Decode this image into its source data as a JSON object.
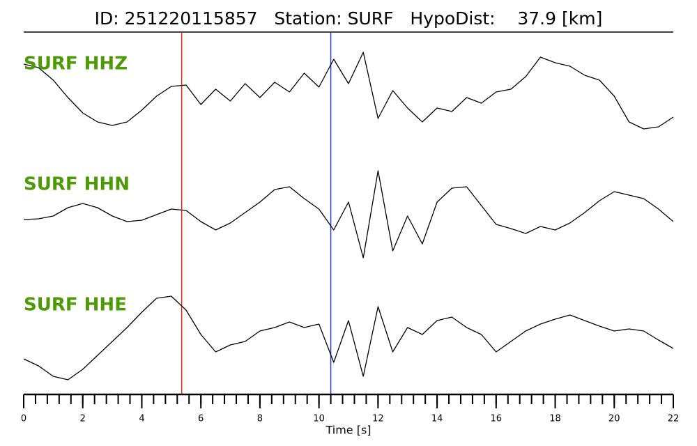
{
  "chart_data": {
    "type": "line",
    "title": "ID: 251220115857   Station: SURF   HypoDist:    37.9 [km]",
    "xlabel": "Time [s]",
    "xlim": [
      0,
      22
    ],
    "xticks": [
      0,
      2,
      4,
      6,
      8,
      10,
      12,
      14,
      16,
      18,
      20,
      22
    ],
    "xminor_interval": 0.4,
    "ylim": [
      -1,
      1
    ],
    "label_color": "#4e9a06",
    "x": [
      0,
      0.5,
      1,
      1.5,
      2,
      2.5,
      3,
      3.5,
      4,
      4.5,
      5,
      5.5,
      6,
      6.5,
      7,
      7.5,
      8,
      8.5,
      9,
      9.5,
      10,
      10.5,
      11,
      11.5,
      12,
      12.5,
      13,
      13.5,
      14,
      14.5,
      15,
      15.5,
      16,
      16.5,
      17,
      17.5,
      18,
      18.5,
      19,
      19.5,
      20,
      20.5,
      21,
      21.5,
      22
    ],
    "picks": [
      {
        "time": 5.35,
        "color": "#e8261c"
      },
      {
        "time": 10.4,
        "color": "#1f3fe0"
      }
    ],
    "series": [
      {
        "name": "SURF HHZ",
        "color": "#000000",
        "values": [
          0.38,
          0.33,
          0.15,
          -0.1,
          -0.32,
          -0.45,
          -0.5,
          -0.45,
          -0.28,
          -0.08,
          0.06,
          0.08,
          -0.2,
          0.02,
          -0.15,
          0.1,
          -0.1,
          0.12,
          -0.02,
          0.25,
          0.05,
          0.45,
          0.1,
          0.55,
          -0.4,
          0,
          -0.25,
          -0.45,
          -0.25,
          -0.3,
          -0.1,
          -0.18,
          -0.02,
          0.02,
          0.2,
          0.48,
          0.4,
          0.35,
          0.22,
          0.15,
          -0.08,
          -0.45,
          -0.55,
          -0.52,
          -0.38
        ]
      },
      {
        "name": "SURF HHN",
        "color": "#000000",
        "values": [
          0,
          0.01,
          0.05,
          0.17,
          0.23,
          0.17,
          0.05,
          -0.03,
          -0.01,
          0.07,
          0.15,
          0.13,
          -0.03,
          -0.15,
          -0.05,
          0.1,
          0.25,
          0.43,
          0.47,
          0.3,
          0.15,
          -0.15,
          0.25,
          -0.55,
          0.7,
          -0.45,
          0.05,
          -0.35,
          0.25,
          0.45,
          0.47,
          0.2,
          -0.07,
          -0.13,
          -0.2,
          -0.1,
          -0.15,
          -0.05,
          0.1,
          0.27,
          0.4,
          0.35,
          0.3,
          0.15,
          -0.03
        ]
      },
      {
        "name": "SURF HHE",
        "color": "#000000",
        "values": [
          -0.25,
          -0.35,
          -0.5,
          -0.55,
          -0.4,
          -0.2,
          0,
          0.2,
          0.42,
          0.62,
          0.65,
          0.45,
          0.1,
          -0.15,
          -0.05,
          0,
          0.15,
          0.2,
          0.28,
          0.2,
          0.25,
          -0.3,
          0.3,
          -0.5,
          0.5,
          -0.15,
          0.2,
          0.1,
          0.3,
          0.35,
          0.2,
          0.1,
          -0.15,
          0,
          0.15,
          0.25,
          0.32,
          0.38,
          0.3,
          0.22,
          0.15,
          0.18,
          0.15,
          0.02,
          -0.1
        ]
      }
    ]
  }
}
